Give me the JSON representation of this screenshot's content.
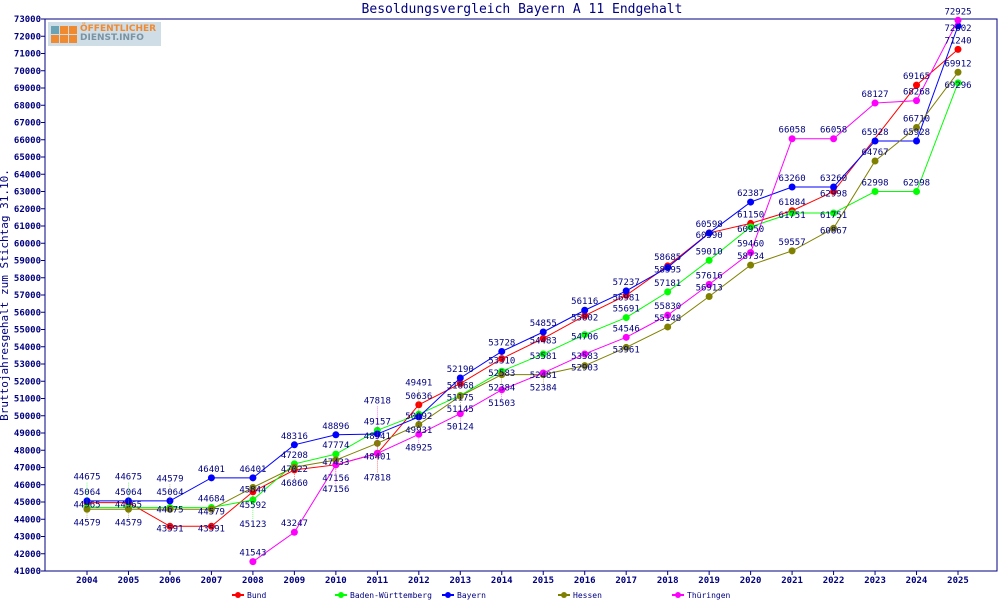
{
  "chart_data": {
    "type": "line",
    "title": "Besoldungsvergleich Bayern A 11 Endgehalt",
    "xlabel": "",
    "ylabel": "Bruttojahresgehalt zum Stichtag 31.10.",
    "ylim": [
      41000,
      73000
    ],
    "ytick_step": 1000,
    "grid": false,
    "legend_position": "bottom",
    "x": [
      "2004",
      "2005",
      "2006",
      "2007",
      "2008",
      "2009",
      "2010",
      "2011",
      "2012",
      "2013",
      "2014",
      "2015",
      "2016",
      "2017",
      "2018",
      "2019",
      "2020",
      "2021",
      "2022",
      "2023",
      "2024",
      "2025"
    ],
    "series": [
      {
        "name": "Bund",
        "color": "#ff0000",
        "values": [
          44965,
          44965,
          43591,
          43591,
          45592,
          46860,
          47156,
          47818,
          50636,
          51868,
          53310,
          54483,
          55802,
          56981,
          58685,
          60598,
          61150,
          61884,
          62998,
          null,
          69165,
          71240
        ]
      },
      {
        "name": "Baden-Württemberg",
        "color": "#00ff00",
        "values": [
          44675,
          44675,
          44675,
          44684,
          45123,
          47208,
          47774,
          49157,
          50092,
          51175,
          52583,
          53581,
          54706,
          55691,
          57181,
          59010,
          60950,
          61751,
          61751,
          62998,
          62998,
          69296
        ]
      },
      {
        "name": "Bayern",
        "color": "#0000ff",
        "values": [
          45064,
          45064,
          45064,
          46401,
          46401,
          48316,
          48896,
          48941,
          49931,
          52190,
          53728,
          54855,
          56116,
          57237,
          58595,
          60590,
          62387,
          63260,
          63260,
          65928,
          65928,
          72602
        ]
      },
      {
        "name": "Hessen",
        "color": "#808000",
        "values": [
          44579,
          44579,
          44579,
          44579,
          45844,
          47022,
          47433,
          48401,
          49491,
          51145,
          52384,
          52384,
          52903,
          53961,
          55148,
          56913,
          58734,
          59557,
          60867,
          64767,
          66710,
          69912
        ]
      },
      {
        "name": "Thüringen",
        "color": "#ff00ff",
        "values": [
          null,
          null,
          null,
          null,
          41543,
          43247,
          47156,
          47818,
          48925,
          50124,
          51503,
          52481,
          53583,
          54546,
          55830,
          57616,
          59460,
          66058,
          66058,
          68127,
          68268,
          72925
        ]
      }
    ]
  },
  "logo": {
    "line1": "ÖFFENTLICHER",
    "line2": "DIENST.INFO"
  }
}
